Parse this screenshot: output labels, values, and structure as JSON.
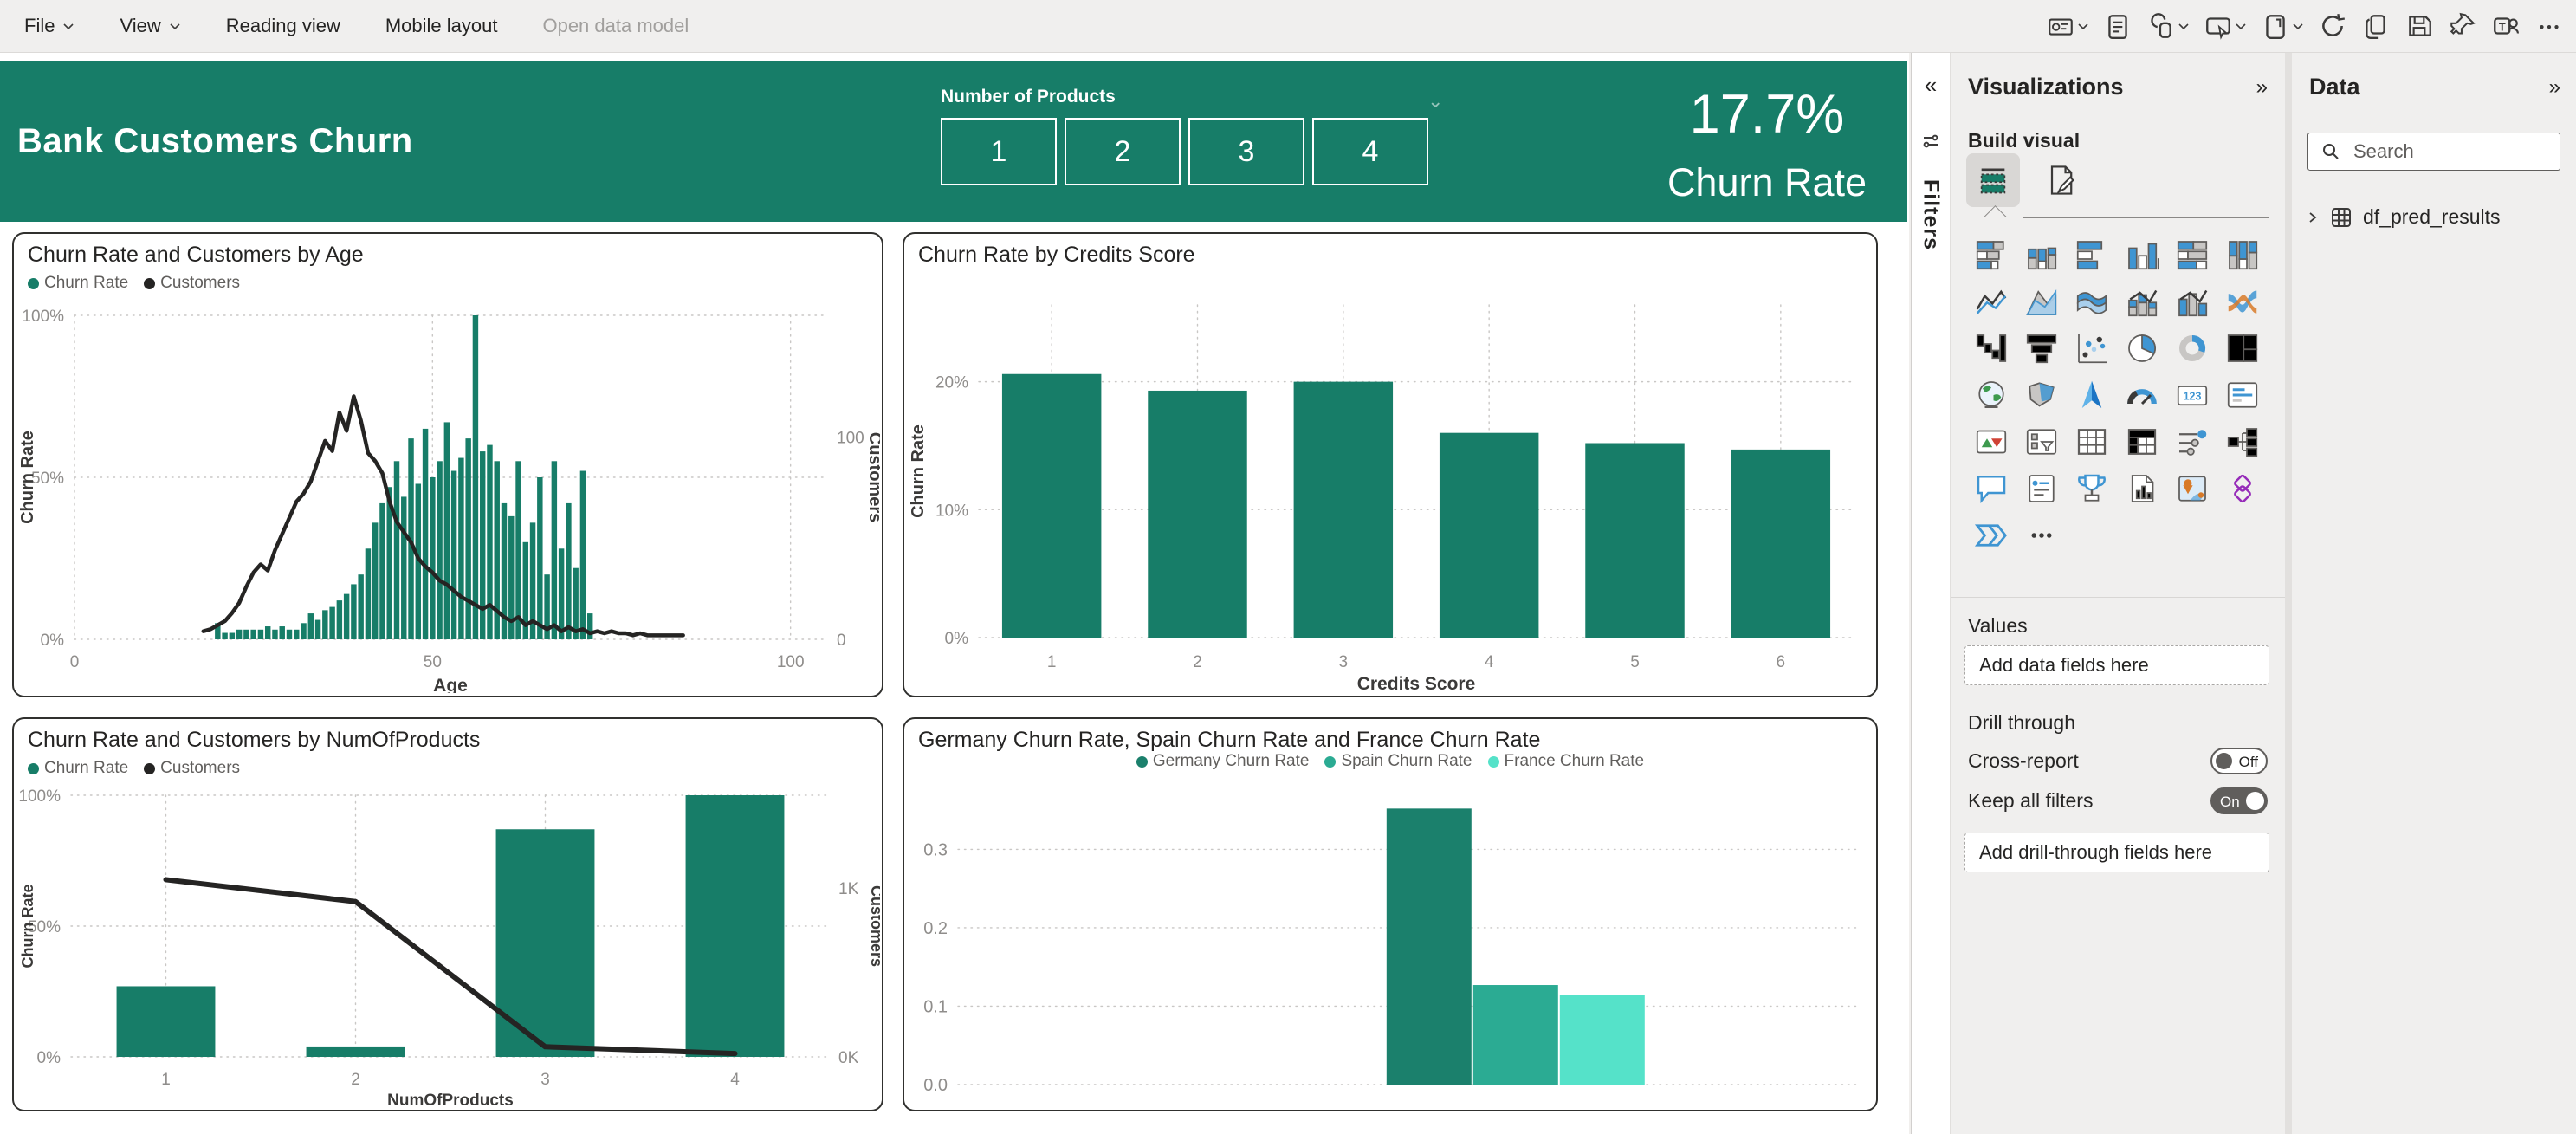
{
  "menu": {
    "items": [
      {
        "label": "File",
        "chevron": true,
        "disabled": false
      },
      {
        "label": "View",
        "chevron": true,
        "disabled": false
      },
      {
        "label": "Reading view",
        "chevron": false,
        "disabled": false
      },
      {
        "label": "Mobile layout",
        "chevron": false,
        "disabled": false
      },
      {
        "label": "Open data model",
        "chevron": false,
        "disabled": true
      }
    ]
  },
  "toolbar": {
    "icons": [
      {
        "name": "visual-interactions-icon",
        "chevron": true
      },
      {
        "name": "notes-icon",
        "chevron": false
      },
      {
        "name": "copy-link-icon",
        "chevron": true
      },
      {
        "name": "share-icon",
        "chevron": true
      },
      {
        "name": "new-window-icon",
        "chevron": true
      },
      {
        "name": "refresh-icon",
        "chevron": false
      },
      {
        "name": "copy-icon",
        "chevron": false
      },
      {
        "name": "save-icon",
        "chevron": false
      },
      {
        "name": "pin-icon",
        "chevron": false
      },
      {
        "name": "teams-icon",
        "chevron": false
      },
      {
        "name": "more-options-icon",
        "chevron": false
      }
    ]
  },
  "report_header": {
    "title": "Bank Customers Churn",
    "slicer": {
      "label": "Number of Products",
      "options": [
        "1",
        "2",
        "3",
        "4"
      ]
    },
    "kpi": {
      "value": "17.7%",
      "label": "Churn Rate"
    }
  },
  "filters_pane": {
    "label": "Filters",
    "collapse_icon": "«"
  },
  "visualizations_pane": {
    "title": "Visualizations",
    "collapse_icon": "»",
    "build_visual_label": "Build visual",
    "gallery": [
      "stacked-bar-chart",
      "stacked-column-chart",
      "clustered-bar-chart",
      "clustered-column-chart",
      "100-stacked-bar-chart",
      "100-stacked-column-chart",
      "line-chart",
      "area-chart",
      "stacked-area-chart",
      "line-and-stacked-column-chart",
      "line-and-clustered-column-chart",
      "ribbon-chart",
      "waterfall-chart",
      "funnel-chart",
      "scatter-chart",
      "pie-chart",
      "donut-chart",
      "treemap",
      "map",
      "filled-map",
      "azure-map",
      "gauge",
      "card",
      "multi-row-card",
      "kpi",
      "slicer",
      "table",
      "matrix",
      "key-influencers",
      "decomposition-tree",
      "q-and-a",
      "smart-narrative",
      "metrics",
      "paginated-report",
      "arcgis-map",
      "power-apps",
      "power-automate",
      "more-visuals"
    ],
    "values_label": "Values",
    "values_placeholder": "Add data fields here",
    "drill_through_label": "Drill through",
    "cross_report_label": "Cross-report",
    "cross_report_state": "Off",
    "keep_all_filters_label": "Keep all filters",
    "keep_all_filters_state": "On",
    "drill_placeholder": "Add drill-through fields here"
  },
  "data_pane": {
    "title": "Data",
    "collapse_icon": "»",
    "search_placeholder": "Search",
    "tables": [
      {
        "name": "df_pred_results"
      }
    ]
  },
  "colors": {
    "theme_green": "#177D68",
    "germany_green": "#1B806C",
    "spain_teal": "#2BAB93",
    "france_mint": "#55E2C9",
    "line_black": "#252423"
  },
  "chart_data": [
    {
      "type": "combo",
      "title": "Churn Rate and Customers by Age",
      "legend_position": "top-left",
      "legend": [
        {
          "label": "Churn Rate",
          "color": "#177D68"
        },
        {
          "label": "Customers",
          "color": "#252423"
        }
      ],
      "grid": {
        "v": true,
        "h": true
      },
      "x_axis": {
        "label": "Age",
        "min": 0,
        "max": 105,
        "ticks": [
          {
            "v": 0,
            "t": "0"
          },
          {
            "v": 50,
            "t": "50"
          },
          {
            "v": 100,
            "t": "100"
          }
        ]
      },
      "y_left": {
        "label": "Churn Rate",
        "max": 1,
        "ticks": [
          {
            "v": 0,
            "t": "0%"
          },
          {
            "v": 0.5,
            "t": "50%"
          },
          {
            "v": 1,
            "t": "100%"
          }
        ]
      },
      "y_right": {
        "label": "Customers",
        "max": 160,
        "ticks": [
          {
            "v": 0,
            "t": "0"
          },
          {
            "v": 100,
            "t": "100"
          }
        ]
      },
      "bars": {
        "x": [
          20,
          21,
          22,
          23,
          24,
          25,
          26,
          27,
          28,
          29,
          30,
          31,
          32,
          33,
          34,
          35,
          36,
          37,
          38,
          39,
          40,
          41,
          42,
          43,
          44,
          45,
          46,
          47,
          48,
          49,
          50,
          51,
          52,
          53,
          54,
          55,
          56,
          57,
          58,
          59,
          60,
          61,
          62,
          63,
          64,
          65,
          66,
          67,
          68,
          69,
          70,
          71,
          72
        ],
        "values": [
          0.05,
          0.02,
          0.02,
          0.03,
          0.03,
          0.03,
          0.03,
          0.04,
          0.03,
          0.04,
          0.03,
          0.03,
          0.05,
          0.08,
          0.06,
          0.09,
          0.1,
          0.12,
          0.14,
          0.17,
          0.2,
          0.28,
          0.36,
          0.42,
          0.47,
          0.55,
          0.44,
          0.62,
          0.48,
          0.65,
          0.5,
          0.55,
          0.67,
          0.52,
          0.56,
          0.62,
          1.0,
          0.58,
          0.6,
          0.55,
          0.42,
          0.38,
          0.55,
          0.3,
          0.36,
          0.5,
          0.2,
          0.55,
          0.28,
          0.42,
          0.22,
          0.52,
          0.08
        ]
      },
      "line": {
        "x_start": 18,
        "values": [
          4,
          5,
          7,
          9,
          13,
          18,
          26,
          33,
          37,
          34,
          44,
          52,
          60,
          68,
          72,
          78,
          88,
          98,
          93,
          112,
          103,
          120,
          108,
          92,
          88,
          82,
          68,
          58,
          53,
          48,
          40,
          36,
          33,
          29,
          27,
          24,
          21,
          19,
          17,
          15,
          17,
          14,
          11,
          9,
          11,
          7,
          9,
          7,
          5,
          7,
          4,
          6,
          4,
          5,
          3,
          4,
          3,
          4,
          3,
          3,
          2,
          3,
          2,
          2,
          2,
          2,
          2,
          2
        ]
      }
    },
    {
      "type": "bar",
      "title": "Churn Rate by Credits Score",
      "grid": {
        "v": true,
        "h": true
      },
      "x_axis": {
        "label": "Credits Score",
        "categories": [
          "1",
          "2",
          "3",
          "4",
          "5",
          "6"
        ]
      },
      "y_left": {
        "label": "Churn Rate",
        "max": 0.26,
        "ticks": [
          {
            "v": 0,
            "t": "0%"
          },
          {
            "v": 0.1,
            "t": "10%"
          },
          {
            "v": 0.2,
            "t": "20%"
          }
        ]
      },
      "values": [
        0.206,
        0.193,
        0.2,
        0.16,
        0.152,
        0.147
      ],
      "bar_color": "#177D68"
    },
    {
      "type": "combo-category",
      "title": "Churn Rate and Customers by NumOfProducts",
      "legend_position": "top-left",
      "legend": [
        {
          "label": "Churn Rate",
          "color": "#177D68"
        },
        {
          "label": "Customers",
          "color": "#252423"
        }
      ],
      "grid": {
        "v": true,
        "h": true
      },
      "x_axis": {
        "label": "NumOfProducts",
        "categories": [
          "1",
          "2",
          "3",
          "4"
        ]
      },
      "y_left": {
        "label": "Churn Rate",
        "max": 1,
        "ticks": [
          {
            "v": 0,
            "t": "0%"
          },
          {
            "v": 0.5,
            "t": "50%"
          },
          {
            "v": 1,
            "t": "100%"
          }
        ]
      },
      "y_right": {
        "label": "Customers",
        "max": 1.55,
        "ticks": [
          {
            "v": 0,
            "t": "0K"
          },
          {
            "v": 1,
            "t": "1K"
          }
        ]
      },
      "bars": [
        0.27,
        0.04,
        0.87,
        1.0
      ],
      "line": [
        1.05,
        0.92,
        0.06,
        0.02
      ]
    },
    {
      "type": "clustered-column",
      "title": "Germany Churn Rate, Spain Churn Rate and France Churn Rate",
      "legend_position": "top-center",
      "grid": {
        "v": false,
        "h": true
      },
      "series": [
        {
          "label": "Germany Churn Rate",
          "color": "#1B806C",
          "value": 0.352
        },
        {
          "label": "Spain Churn Rate",
          "color": "#2BAB93",
          "value": 0.127
        },
        {
          "label": "France Churn Rate",
          "color": "#55E2C9",
          "value": 0.114
        }
      ],
      "y_left": {
        "max": 0.38,
        "ticks": [
          {
            "v": 0,
            "t": "0.0"
          },
          {
            "v": 0.1,
            "t": "0.1"
          },
          {
            "v": 0.2,
            "t": "0.2"
          },
          {
            "v": 0.3,
            "t": "0.3"
          }
        ]
      }
    }
  ]
}
